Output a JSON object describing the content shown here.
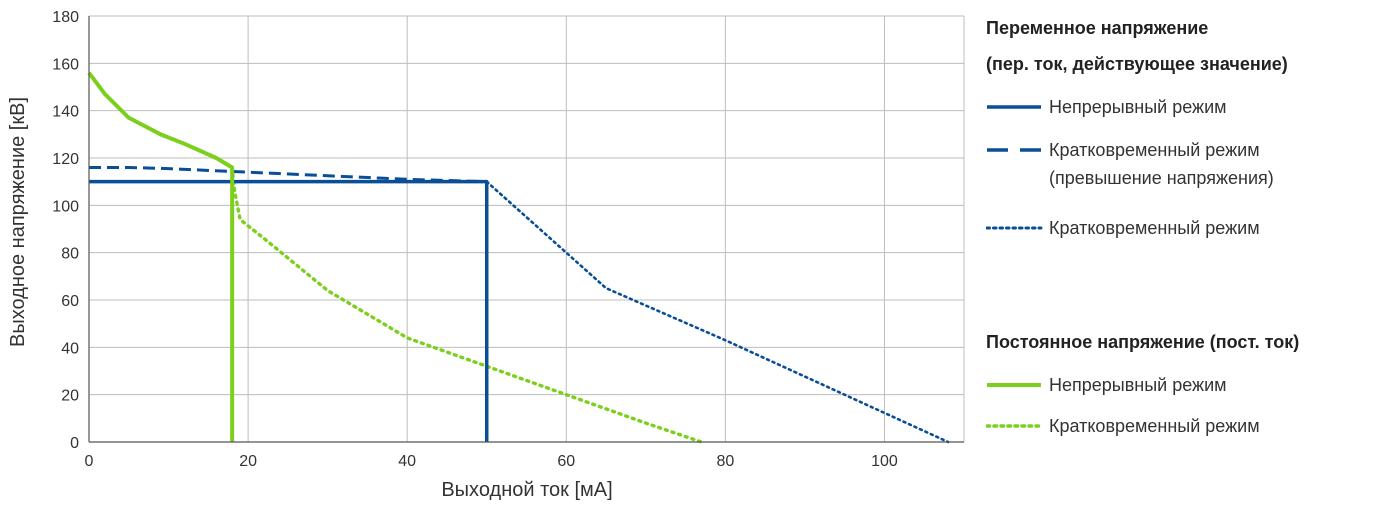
{
  "chart_data": {
    "type": "line",
    "title": "",
    "xlabel": "Выходной ток [мА]",
    "ylabel": "Выходное напряжение [кВ]",
    "xlim": [
      0,
      110
    ],
    "ylim": [
      0,
      180
    ],
    "x_ticks": [
      "0",
      "20",
      "40",
      "60",
      "80",
      "100"
    ],
    "y_ticks": [
      "0",
      "20",
      "40",
      "60",
      "80",
      "100",
      "120",
      "140",
      "160",
      "180"
    ],
    "grid": true,
    "legend_position": "right",
    "groups": [
      {
        "title_line1": "Переменное напряжение",
        "title_line2": "(пер. ток, действующее значение)",
        "color": "#0a4f96",
        "series": [
          {
            "name": "Непрерывный режим",
            "style": "solid",
            "points": [
              [
                0,
                110
              ],
              [
                50,
                110
              ],
              [
                50,
                0
              ]
            ]
          },
          {
            "name": "Кратковременный режим",
            "name_line2": "(превышение напряжения)",
            "style": "dashed",
            "points": [
              [
                0,
                116
              ],
              [
                5,
                116
              ],
              [
                10,
                115.5
              ],
              [
                20,
                114
              ],
              [
                30,
                112.5
              ],
              [
                40,
                111
              ],
              [
                50,
                110
              ]
            ]
          },
          {
            "name": "Кратковременный режим",
            "style": "dotted",
            "points": [
              [
                50,
                110
              ],
              [
                60,
                80
              ],
              [
                65,
                65
              ],
              [
                80,
                43
              ],
              [
                108,
                0
              ]
            ]
          }
        ]
      },
      {
        "title_line1": "Постоянное напряжение (пост. ток)",
        "color": "#7ccf1c",
        "series": [
          {
            "name": "Непрерывный режим",
            "style": "solid",
            "points": [
              [
                0,
                156
              ],
              [
                2,
                147
              ],
              [
                5,
                137
              ],
              [
                9,
                130
              ],
              [
                12,
                126
              ],
              [
                16,
                120
              ],
              [
                18,
                116
              ],
              [
                18,
                0
              ]
            ]
          },
          {
            "name": "Кратковременный режим",
            "style": "dotted",
            "points": [
              [
                18,
                116
              ],
              [
                18.3,
                106
              ],
              [
                19,
                94
              ],
              [
                22,
                86
              ],
              [
                30,
                64
              ],
              [
                40,
                44
              ],
              [
                50,
                32
              ],
              [
                60,
                20
              ],
              [
                70,
                8
              ],
              [
                77,
                0
              ]
            ]
          }
        ]
      }
    ]
  }
}
